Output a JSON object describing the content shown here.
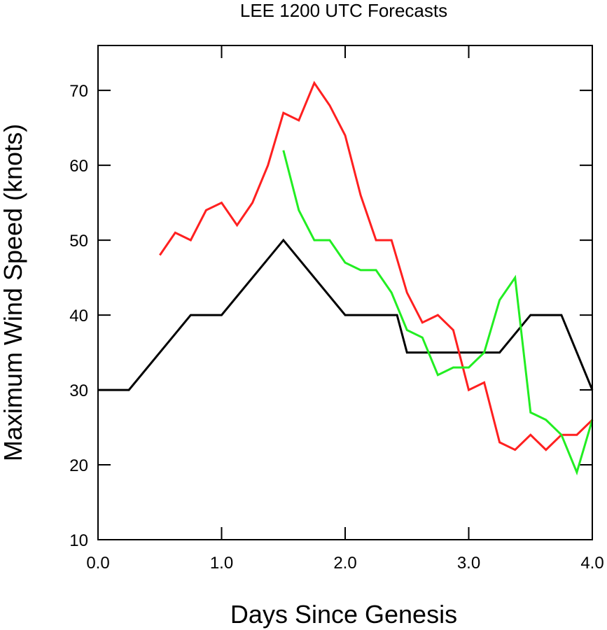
{
  "chart_data": {
    "type": "line",
    "title": "LEE 1200 UTC Forecasts",
    "xlabel": "Days Since Genesis",
    "ylabel": "Maximum Wind Speed (knots)",
    "xlim": [
      0,
      4
    ],
    "ylim": [
      10,
      76
    ],
    "x_ticks": [
      0,
      1,
      2,
      3,
      4
    ],
    "x_tick_labels": [
      "0.0",
      "1.0",
      "2.0",
      "3.0",
      "4.0"
    ],
    "y_ticks": [
      10,
      20,
      30,
      40,
      50,
      60,
      70
    ],
    "y_tick_labels": [
      "10",
      "20",
      "30",
      "40",
      "50",
      "60",
      "70"
    ],
    "grid": false,
    "legend": "none",
    "series": [
      {
        "color": "#000000",
        "points": [
          [
            0,
            30
          ],
          [
            0.25,
            30
          ],
          [
            0.75,
            40
          ],
          [
            1.0,
            40
          ],
          [
            1.5,
            50
          ],
          [
            2.0,
            40
          ],
          [
            2.25,
            40
          ],
          [
            2.42,
            40
          ],
          [
            2.5,
            35
          ],
          [
            3.0,
            35
          ],
          [
            3.25,
            35
          ],
          [
            3.5,
            40
          ],
          [
            3.75,
            40
          ],
          [
            4.0,
            30
          ]
        ]
      },
      {
        "color": "#ff2020",
        "points": [
          [
            0.5,
            48
          ],
          [
            0.625,
            51
          ],
          [
            0.75,
            50
          ],
          [
            0.875,
            54
          ],
          [
            1.0,
            55
          ],
          [
            1.125,
            52
          ],
          [
            1.25,
            55
          ],
          [
            1.375,
            60
          ],
          [
            1.5,
            67
          ],
          [
            1.625,
            66
          ],
          [
            1.75,
            71
          ],
          [
            1.875,
            68
          ],
          [
            2.0,
            64
          ],
          [
            2.125,
            56
          ],
          [
            2.25,
            50
          ],
          [
            2.375,
            50
          ],
          [
            2.5,
            43
          ],
          [
            2.625,
            39
          ],
          [
            2.75,
            40
          ],
          [
            2.875,
            38
          ],
          [
            3.0,
            30
          ],
          [
            3.125,
            31
          ],
          [
            3.25,
            23
          ],
          [
            3.375,
            22
          ],
          [
            3.5,
            24
          ],
          [
            3.625,
            22
          ],
          [
            3.75,
            24
          ],
          [
            3.875,
            24
          ],
          [
            4.0,
            26
          ]
        ]
      },
      {
        "color": "#22ee22",
        "points": [
          [
            1.5,
            62
          ],
          [
            1.625,
            54
          ],
          [
            1.75,
            50
          ],
          [
            1.875,
            50
          ],
          [
            2.0,
            47
          ],
          [
            2.125,
            46
          ],
          [
            2.25,
            46
          ],
          [
            2.375,
            43
          ],
          [
            2.5,
            38
          ],
          [
            2.625,
            37
          ],
          [
            2.75,
            32
          ],
          [
            2.875,
            33
          ],
          [
            3.0,
            33
          ],
          [
            3.125,
            35
          ],
          [
            3.25,
            42
          ],
          [
            3.375,
            45
          ],
          [
            3.5,
            27
          ],
          [
            3.625,
            26
          ],
          [
            3.75,
            24
          ],
          [
            3.875,
            19
          ],
          [
            4.0,
            26
          ]
        ]
      }
    ]
  }
}
